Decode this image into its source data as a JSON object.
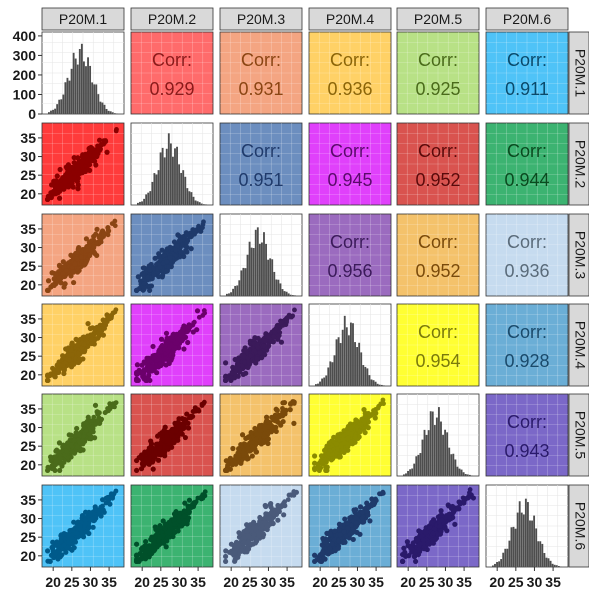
{
  "chart_data": {
    "type": "scatter-matrix",
    "variables": [
      "P20M.1",
      "P20M.2",
      "P20M.3",
      "P20M.4",
      "P20M.5",
      "P20M.6"
    ],
    "correlations": [
      {
        "row": 0,
        "col": 1,
        "label": "Corr:",
        "value": "0.929"
      },
      {
        "row": 0,
        "col": 2,
        "label": "Corr:",
        "value": "0.931"
      },
      {
        "row": 0,
        "col": 3,
        "label": "Corr:",
        "value": "0.936"
      },
      {
        "row": 0,
        "col": 4,
        "label": "Corr:",
        "value": "0.925"
      },
      {
        "row": 0,
        "col": 5,
        "label": "Corr:",
        "value": "0.911"
      },
      {
        "row": 1,
        "col": 2,
        "label": "Corr:",
        "value": "0.951"
      },
      {
        "row": 1,
        "col": 3,
        "label": "Corr:",
        "value": "0.945"
      },
      {
        "row": 1,
        "col": 4,
        "label": "Corr:",
        "value": "0.952"
      },
      {
        "row": 1,
        "col": 5,
        "label": "Corr:",
        "value": "0.944"
      },
      {
        "row": 2,
        "col": 3,
        "label": "Corr:",
        "value": "0.956"
      },
      {
        "row": 2,
        "col": 4,
        "label": "Corr:",
        "value": "0.952"
      },
      {
        "row": 2,
        "col": 5,
        "label": "Corr:",
        "value": "0.936"
      },
      {
        "row": 3,
        "col": 4,
        "label": "Corr:",
        "value": "0.954"
      },
      {
        "row": 3,
        "col": 5,
        "label": "Corr:",
        "value": "0.928"
      },
      {
        "row": 4,
        "col": 5,
        "label": "Corr:",
        "value": "0.943"
      }
    ],
    "upper_panel_colors": [
      [
        null,
        "#ff6b6b",
        "#f4a582",
        "#ffd166",
        "#b8e186",
        "#4fc3f7"
      ],
      [
        null,
        null,
        "#6c8ebf",
        "#e040fb",
        "#d9534f",
        "#3cb371"
      ],
      [
        null,
        null,
        null,
        "#9b6bbf",
        "#f4c26b",
        "#c6dbef"
      ],
      [
        null,
        null,
        null,
        null,
        "#ffff33",
        "#6baed6"
      ],
      [
        null,
        null,
        null,
        null,
        null,
        "#7b68c8"
      ]
    ],
    "upper_text_colors": [
      [
        null,
        "#8b1a1a",
        "#8b4513",
        "#8b6508",
        "#4a6b1a",
        "#0a4a6b"
      ],
      [
        null,
        null,
        "#1f3a6b",
        "#5a0a6b",
        "#5a0a0a",
        "#0a4a1f"
      ],
      [
        null,
        null,
        null,
        "#3b1a5a",
        "#7a4a0a",
        "#5a6b7a"
      ],
      [
        null,
        null,
        null,
        null,
        "#7a7a0a",
        "#1a4a6b"
      ],
      [
        null,
        null,
        null,
        null,
        null,
        "#2a1a6b"
      ]
    ],
    "lower_panel_colors": [
      [
        null,
        null,
        null,
        null,
        null,
        null
      ],
      [
        "#ff3b3b",
        null,
        null,
        null,
        null,
        null
      ],
      [
        "#f4a582",
        "#6c8ebf",
        null,
        null,
        null,
        null
      ],
      [
        "#ffd166",
        "#e040fb",
        "#9b6bbf",
        null,
        null,
        null
      ],
      [
        "#b8e186",
        "#d9534f",
        "#f4c26b",
        "#ffff33",
        null,
        null
      ],
      [
        "#4fc3f7",
        "#3cb371",
        "#c6dbef",
        "#6baed6",
        "#7b68c8",
        null
      ]
    ],
    "lower_point_colors": [
      [
        null,
        null,
        null,
        null,
        null,
        null
      ],
      [
        "#8b0000",
        null,
        null,
        null,
        null,
        null
      ],
      [
        "#8b4513",
        "#1f3a6b",
        null,
        null,
        null,
        null
      ],
      [
        "#8b6508",
        "#6b006b",
        "#3b1a5a",
        null,
        null,
        null
      ],
      [
        "#4a6b1a",
        "#6b0000",
        "#7a4a0a",
        "#8b8b00",
        null,
        null
      ],
      [
        "#005a8b",
        "#00502a",
        "#4a5a7a",
        "#1f3a6b",
        "#2a1a6b",
        null
      ]
    ],
    "diagonal_histogram_color": "#4d4d4d",
    "row1_yaxis": {
      "ticks": [
        "400",
        "300",
        "200",
        "100",
        "0"
      ],
      "values": [
        400,
        300,
        200,
        100,
        0
      ],
      "range": [
        0,
        420
      ]
    },
    "rows_yaxis": {
      "ticks": [
        "35",
        "30",
        "25",
        "20"
      ],
      "values": [
        35,
        30,
        25,
        20
      ],
      "range": [
        17,
        39
      ]
    },
    "xaxis": {
      "ticks": [
        "20",
        "25",
        "30",
        "35"
      ],
      "values": [
        20,
        25,
        30,
        35
      ],
      "range": [
        17,
        39
      ]
    }
  }
}
